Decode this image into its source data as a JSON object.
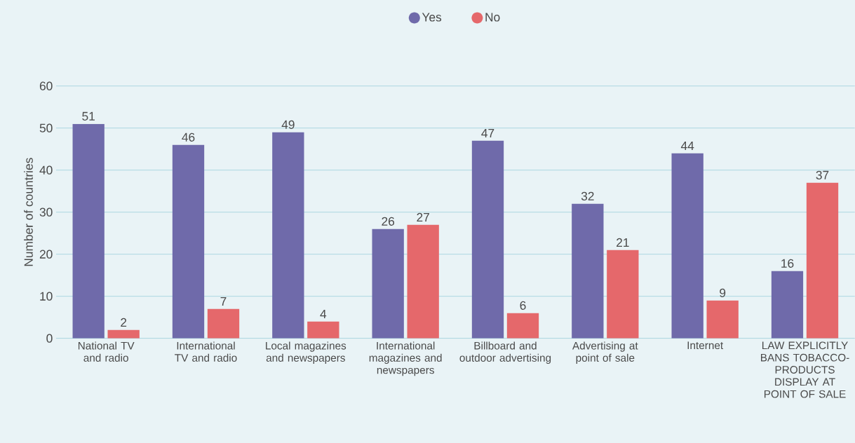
{
  "chart_data": {
    "type": "bar",
    "ylabel": "Number of countries",
    "categories": [
      "National TV and radio",
      "International TV and radio",
      "Local magazines and newspapers",
      "International magazines and newspapers",
      "Billboard and outdoor advertising",
      "Advertising at point of sale",
      "Internet",
      "LAW EXPLICITLY BANS TOBACCO-PRODUCTS DISPLAY AT POINT OF SALE"
    ],
    "series": [
      {
        "name": "Yes",
        "color": "#6f6aaa",
        "values": [
          51,
          46,
          49,
          26,
          47,
          32,
          44,
          16
        ]
      },
      {
        "name": "No",
        "color": "#e5686b",
        "values": [
          2,
          7,
          4,
          27,
          6,
          21,
          9,
          37
        ]
      }
    ],
    "ylim": [
      0,
      60
    ],
    "yticks": [
      0,
      10,
      20,
      30,
      40,
      50,
      60
    ],
    "grid": "y",
    "legend": "top",
    "data_labels": true
  }
}
